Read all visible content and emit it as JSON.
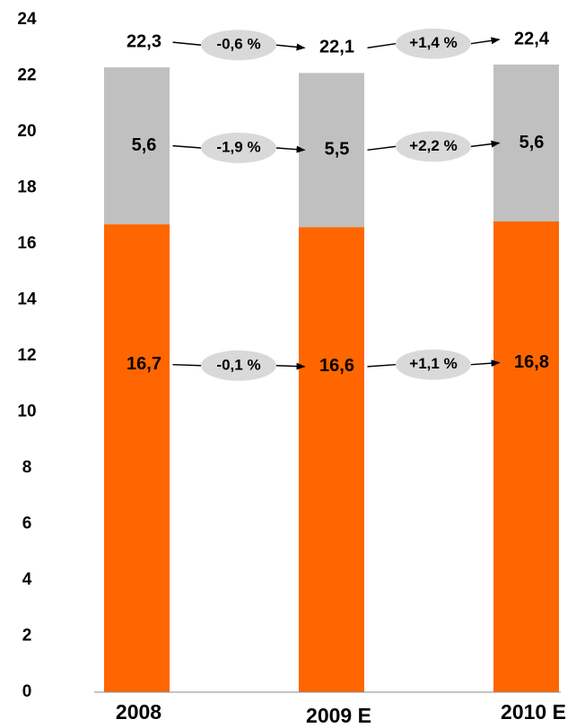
{
  "chart_data": {
    "type": "stacked_bar",
    "categories": [
      "2008",
      "2009 E",
      "2010 E"
    ],
    "series": [
      {
        "color": "#ff6600",
        "values": [
          16.7,
          16.6,
          16.8
        ],
        "value_labels": [
          "16,7",
          "16,6",
          "16,8"
        ],
        "changes": [
          "-0,1 %",
          "+1,1 %"
        ]
      },
      {
        "color": "#c0c0c0",
        "values": [
          5.6,
          5.5,
          5.6
        ],
        "value_labels": [
          "5,6",
          "5,5",
          "5,6"
        ],
        "changes": [
          "-1,9 %",
          "+2,2 %"
        ]
      }
    ],
    "totals": {
      "values": [
        22.3,
        22.1,
        22.4
      ],
      "value_labels": [
        "22,3",
        "22,1",
        "22,4"
      ],
      "changes": [
        "-0,6 %",
        "+1,4 %"
      ]
    },
    "ylim": [
      0,
      24
    ],
    "yticks": [
      0,
      2,
      4,
      6,
      8,
      10,
      12,
      14,
      16,
      18,
      20,
      22,
      24
    ],
    "grid": false
  }
}
